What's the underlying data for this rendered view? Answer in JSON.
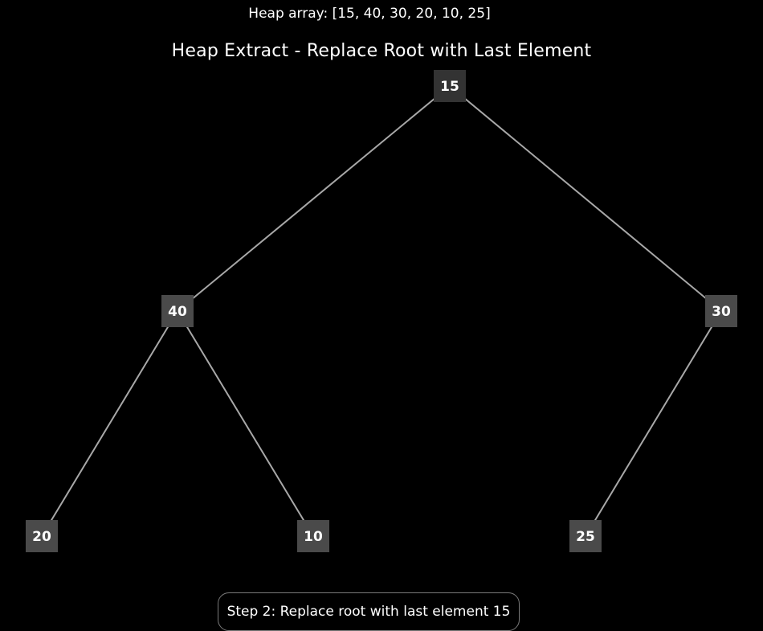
{
  "header": {
    "heap_array_text": "Heap array: [15, 40, 30, 20, 10, 25]",
    "title": "Heap Extract - Replace Root with Last Element"
  },
  "tree": {
    "node_color": "#4a4a4a",
    "root_color": "#333333",
    "edge_color": "#a8a8a8",
    "nodes": [
      {
        "index": 0,
        "label": "15"
      },
      {
        "index": 1,
        "label": "40"
      },
      {
        "index": 2,
        "label": "30"
      },
      {
        "index": 3,
        "label": "20"
      },
      {
        "index": 4,
        "label": "10"
      },
      {
        "index": 5,
        "label": "25"
      }
    ],
    "edges": [
      [
        0,
        1
      ],
      [
        0,
        2
      ],
      [
        1,
        3
      ],
      [
        1,
        4
      ],
      [
        2,
        5
      ]
    ]
  },
  "footer": {
    "step_text": "Step 2: Replace root with last element 15"
  }
}
